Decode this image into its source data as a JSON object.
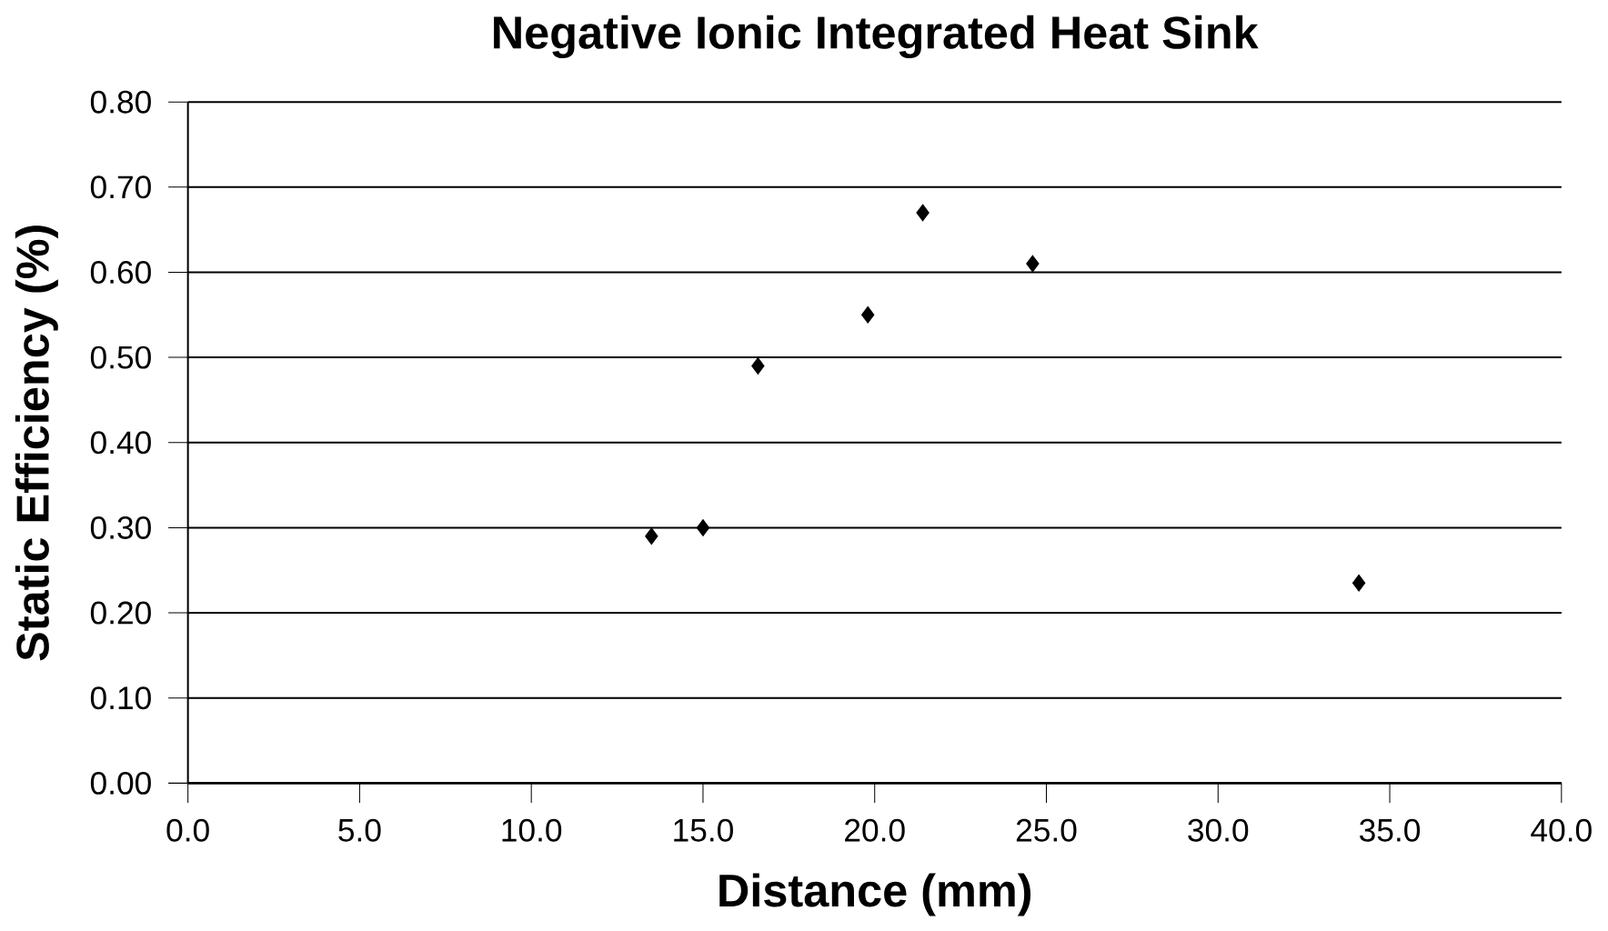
{
  "chart_data": {
    "type": "scatter",
    "title": "Negative Ionic Integrated Heat Sink",
    "xlabel": "Distance (mm)",
    "ylabel": "Static Efficiency (%)",
    "x": [
      13.5,
      15.0,
      16.6,
      19.8,
      21.4,
      24.6,
      34.1
    ],
    "values": [
      0.29,
      0.3,
      0.49,
      0.55,
      0.67,
      0.61,
      0.235
    ],
    "color": "#000000",
    "marker": "diamond",
    "grid": "y",
    "xlim": [
      0,
      40
    ],
    "ylim": [
      0,
      0.8
    ],
    "xticks": [
      {
        "value": 0,
        "label": "0.0"
      },
      {
        "value": 5,
        "label": "5.0"
      },
      {
        "value": 10,
        "label": "10.0"
      },
      {
        "value": 15,
        "label": "15.0"
      },
      {
        "value": 20,
        "label": "20.0"
      },
      {
        "value": 25,
        "label": "25.0"
      },
      {
        "value": 30,
        "label": "30.0"
      },
      {
        "value": 35,
        "label": "35.0"
      },
      {
        "value": 40,
        "label": "40.0"
      }
    ],
    "yticks": [
      {
        "value": 0,
        "label": "0.00"
      },
      {
        "value": 0.1,
        "label": "0.10"
      },
      {
        "value": 0.2,
        "label": "0.20"
      },
      {
        "value": 0.3,
        "label": "0.30"
      },
      {
        "value": 0.4,
        "label": "0.40"
      },
      {
        "value": 0.5,
        "label": "0.50"
      },
      {
        "value": 0.6,
        "label": "0.60"
      },
      {
        "value": 0.7,
        "label": "0.70"
      },
      {
        "value": 0.8,
        "label": "0.80"
      }
    ]
  }
}
